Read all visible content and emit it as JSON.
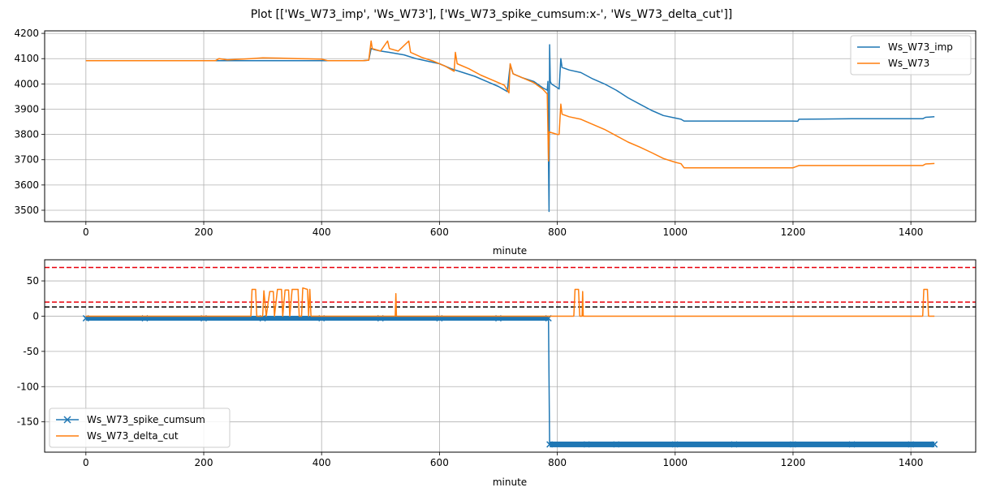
{
  "figure_title": "Plot [['Ws_W73_imp', 'Ws_W73'], ['Ws_W73_spike_cumsum:x-', 'Ws_W73_delta_cut']]",
  "colors": {
    "series1": "#1f77b4",
    "series2": "#ff7f0e",
    "red_line": "#e8000b",
    "black_line": "#000000",
    "grid": "#b0b0b0"
  },
  "chart_data": [
    {
      "type": "line",
      "xlabel": "minute",
      "ylabel": "",
      "xlim": [
        -70,
        1510
      ],
      "ylim": [
        3455,
        4210
      ],
      "xticks": [
        0,
        200,
        400,
        600,
        800,
        1000,
        1200,
        1400
      ],
      "yticks": [
        3500,
        3600,
        3700,
        3800,
        3900,
        4000,
        4100,
        4200
      ],
      "grid": true,
      "legend_position": "upper right",
      "series": [
        {
          "name": "Ws_W73_imp",
          "style": "solid",
          "points": [
            [
              0,
              4092
            ],
            [
              470,
              4092
            ],
            [
              480,
              4094
            ],
            [
              484,
              4140
            ],
            [
              490,
              4135
            ],
            [
              500,
              4130
            ],
            [
              515,
              4125
            ],
            [
              540,
              4115
            ],
            [
              560,
              4100
            ],
            [
              580,
              4090
            ],
            [
              600,
              4080
            ],
            [
              620,
              4060
            ],
            [
              640,
              4045
            ],
            [
              660,
              4030
            ],
            [
              680,
              4010
            ],
            [
              700,
              3990
            ],
            [
              715,
              3970
            ],
            [
              720,
              4075
            ],
            [
              725,
              4040
            ],
            [
              740,
              4025
            ],
            [
              760,
              4010
            ],
            [
              775,
              3985
            ],
            [
              783,
              3975
            ],
            [
              784,
              4010
            ],
            [
              785,
              3700
            ],
            [
              786,
              3495
            ],
            [
              787,
              4155
            ],
            [
              788,
              4010
            ],
            [
              790,
              4000
            ],
            [
              800,
              3985
            ],
            [
              803,
              3980
            ],
            [
              806,
              4100
            ],
            [
              808,
              4065
            ],
            [
              820,
              4055
            ],
            [
              840,
              4045
            ],
            [
              860,
              4020
            ],
            [
              880,
              4000
            ],
            [
              900,
              3975
            ],
            [
              920,
              3945
            ],
            [
              940,
              3920
            ],
            [
              960,
              3895
            ],
            [
              980,
              3875
            ],
            [
              1000,
              3865
            ],
            [
              1010,
              3860
            ],
            [
              1015,
              3853
            ],
            [
              1100,
              3853
            ],
            [
              1200,
              3853
            ],
            [
              1208,
              3852
            ],
            [
              1210,
              3860
            ],
            [
              1300,
              3862
            ],
            [
              1420,
              3862
            ],
            [
              1425,
              3868
            ],
            [
              1440,
              3870
            ]
          ]
        },
        {
          "name": "Ws_W73",
          "style": "solid",
          "points": [
            [
              0,
              4092
            ],
            [
              220,
              4092
            ],
            [
              226,
              4100
            ],
            [
              240,
              4095
            ],
            [
              280,
              4100
            ],
            [
              300,
              4103
            ],
            [
              330,
              4102
            ],
            [
              360,
              4100
            ],
            [
              400,
              4098
            ],
            [
              410,
              4092
            ],
            [
              470,
              4092
            ],
            [
              480,
              4094
            ],
            [
              484,
              4170
            ],
            [
              486,
              4140
            ],
            [
              500,
              4130
            ],
            [
              512,
              4170
            ],
            [
              515,
              4140
            ],
            [
              530,
              4130
            ],
            [
              548,
              4170
            ],
            [
              551,
              4125
            ],
            [
              570,
              4105
            ],
            [
              590,
              4090
            ],
            [
              610,
              4070
            ],
            [
              625,
              4050
            ],
            [
              627,
              4125
            ],
            [
              630,
              4080
            ],
            [
              650,
              4060
            ],
            [
              670,
              4035
            ],
            [
              690,
              4015
            ],
            [
              710,
              3995
            ],
            [
              718,
              3965
            ],
            [
              720,
              4080
            ],
            [
              725,
              4040
            ],
            [
              740,
              4025
            ],
            [
              760,
              4005
            ],
            [
              775,
              3980
            ],
            [
              783,
              3960
            ],
            [
              785,
              3695
            ],
            [
              786,
              3810
            ],
            [
              800,
              3800
            ],
            [
              803,
              3800
            ],
            [
              806,
              3920
            ],
            [
              808,
              3880
            ],
            [
              820,
              3870
            ],
            [
              840,
              3860
            ],
            [
              860,
              3840
            ],
            [
              880,
              3820
            ],
            [
              900,
              3795
            ],
            [
              920,
              3770
            ],
            [
              940,
              3750
            ],
            [
              960,
              3728
            ],
            [
              980,
              3705
            ],
            [
              1000,
              3690
            ],
            [
              1010,
              3684
            ],
            [
              1015,
              3668
            ],
            [
              1100,
              3668
            ],
            [
              1200,
              3668
            ],
            [
              1210,
              3677
            ],
            [
              1300,
              3677
            ],
            [
              1420,
              3677
            ],
            [
              1425,
              3683
            ],
            [
              1440,
              3685
            ]
          ]
        }
      ]
    },
    {
      "type": "line",
      "xlabel": "minute",
      "ylabel": "",
      "xlim": [
        -70,
        1510
      ],
      "ylim": [
        -193,
        80
      ],
      "xticks": [
        0,
        200,
        400,
        600,
        800,
        1000,
        1200,
        1400
      ],
      "yticks": [
        -150,
        -100,
        -50,
        0,
        50
      ],
      "grid": true,
      "legend_position": "lower left",
      "hlines": [
        {
          "y": 69,
          "color": "red",
          "style": "dashed"
        },
        {
          "y": 20,
          "color": "red",
          "style": "dashed"
        },
        {
          "y": 13,
          "color": "black",
          "style": "dashed"
        }
      ],
      "series": [
        {
          "name": "Ws_W73_spike_cumsum",
          "style": "x-",
          "points": [
            [
              0,
              -3
            ],
            [
              100,
              -3
            ],
            [
              200,
              -3
            ],
            [
              300,
              -3
            ],
            [
              400,
              -3
            ],
            [
              500,
              -3
            ],
            [
              600,
              -3
            ],
            [
              700,
              -3
            ],
            [
              785,
              -3
            ],
            [
              787,
              -182
            ],
            [
              850,
              -182
            ],
            [
              900,
              -182
            ],
            [
              1000,
              -182
            ],
            [
              1100,
              -182
            ],
            [
              1200,
              -182
            ],
            [
              1300,
              -182
            ],
            [
              1400,
              -182
            ],
            [
              1440,
              -182
            ]
          ]
        },
        {
          "name": "Ws_W73_delta_cut",
          "style": "solid",
          "points": [
            [
              0,
              0
            ],
            [
              280,
              0
            ],
            [
              282,
              38
            ],
            [
              288,
              38
            ],
            [
              290,
              0
            ],
            [
              300,
              0
            ],
            [
              302,
              36
            ],
            [
              306,
              0
            ],
            [
              312,
              35
            ],
            [
              318,
              35
            ],
            [
              320,
              0
            ],
            [
              325,
              38
            ],
            [
              332,
              38
            ],
            [
              334,
              0
            ],
            [
              338,
              37
            ],
            [
              344,
              37
            ],
            [
              346,
              0
            ],
            [
              350,
              38
            ],
            [
              360,
              38
            ],
            [
              362,
              0
            ],
            [
              366,
              0
            ],
            [
              368,
              40
            ],
            [
              376,
              38
            ],
            [
              378,
              0
            ],
            [
              380,
              38
            ],
            [
              382,
              0
            ],
            [
              525,
              0
            ],
            [
              526,
              32
            ],
            [
              527,
              0
            ],
            [
              828,
              0
            ],
            [
              830,
              38
            ],
            [
              836,
              38
            ],
            [
              838,
              0
            ],
            [
              842,
              0
            ],
            [
              843,
              35
            ],
            [
              844,
              0
            ],
            [
              1420,
              0
            ],
            [
              1422,
              38
            ],
            [
              1428,
              38
            ],
            [
              1430,
              0
            ],
            [
              1440,
              0
            ]
          ]
        }
      ]
    }
  ]
}
